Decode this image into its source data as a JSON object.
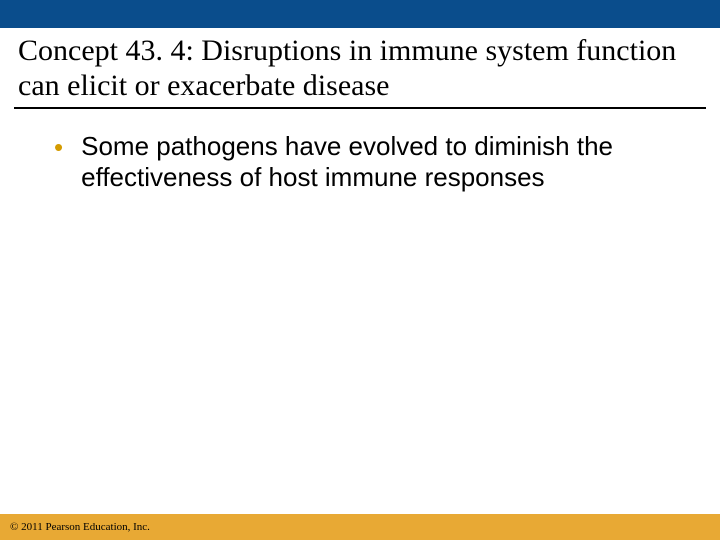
{
  "colors": {
    "top_bar": "#0a4d8c",
    "footer_bar": "#e8a934",
    "bullet": "#d49b00",
    "text": "#000000",
    "background": "#ffffff",
    "underline": "#000000"
  },
  "title": "Concept 43. 4: Disruptions in immune system function can elicit or exacerbate disease",
  "bullets": [
    "Some pathogens have evolved to diminish the effectiveness of host immune responses"
  ],
  "copyright": "© 2011 Pearson Education, Inc."
}
